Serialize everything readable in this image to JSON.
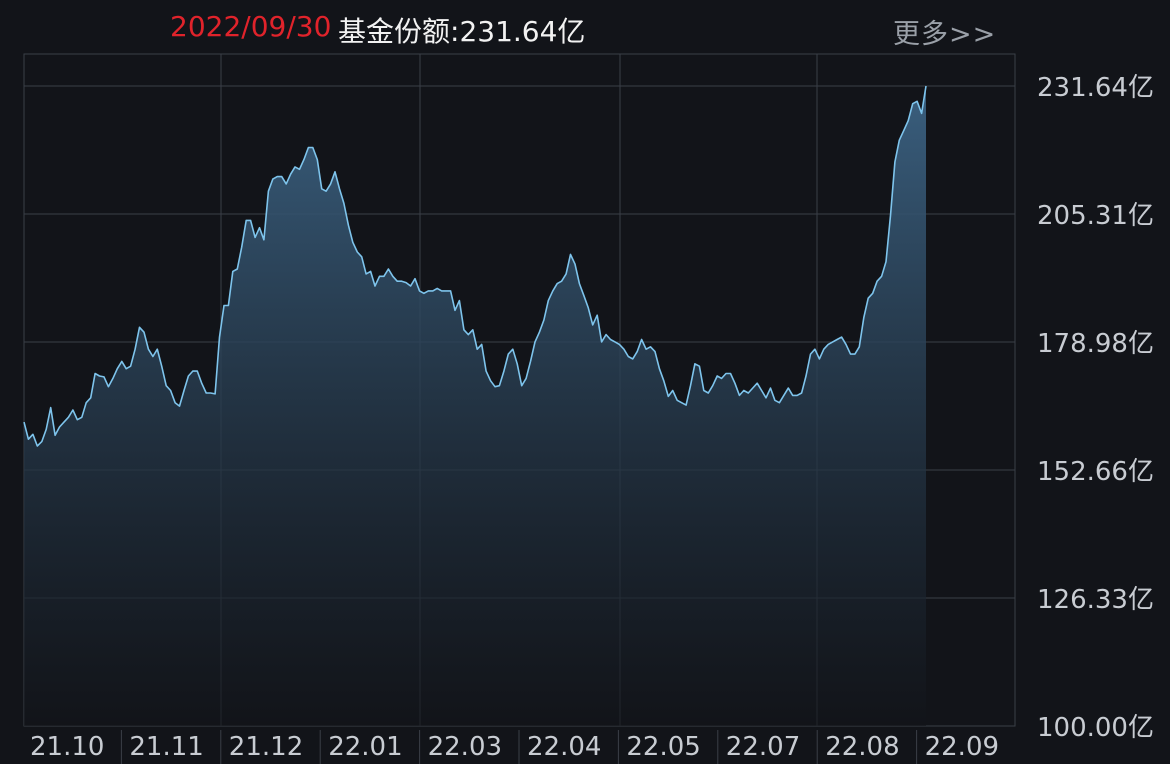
{
  "header": {
    "date": "2022/09/30",
    "label": "基金份额:",
    "value": "231.64亿",
    "more_label": "更多>>"
  },
  "colors": {
    "background": "#121419",
    "grid": "#3a3f47",
    "line": "#7ec4ec",
    "area_top": "#3c6384",
    "date_highlight": "#e0232b",
    "text": "#f2f2f2",
    "axis_text": "#c8ccd2"
  },
  "chart_data": {
    "type": "area",
    "y_unit": "亿",
    "ylim": [
      100.0,
      231.64
    ],
    "y_ticks": [
      "231.64亿",
      "205.31亿",
      "178.98亿",
      "152.66亿",
      "126.33亿",
      "100.00亿"
    ],
    "y_tick_values": [
      231.64,
      205.31,
      178.98,
      152.66,
      126.33,
      100.0
    ],
    "x_ticks": [
      "21.10",
      "21.11",
      "21.12",
      "22.01",
      "22.03",
      "22.04",
      "22.05",
      "22.07",
      "22.08",
      "22.09"
    ],
    "grid": true,
    "series": [
      {
        "values": [
          162.5,
          159.0,
          160.0,
          157.6,
          158.5,
          161.0,
          165.5,
          159.8,
          161.5,
          162.5,
          163.5,
          165.0,
          163.0,
          163.5,
          166.5,
          167.5,
          172.5,
          172.0,
          171.8,
          169.8,
          171.5,
          173.5,
          175.0,
          173.5,
          174.0,
          177.5,
          182.0,
          181.0,
          177.5,
          176.0,
          177.5,
          174.0,
          170.0,
          169.0,
          166.5,
          165.8,
          169.0,
          172.0,
          173.0,
          173.0,
          170.5,
          168.5,
          168.5,
          168.3,
          180.0,
          186.5,
          186.5,
          193.5,
          194.0,
          198.5,
          204.0,
          204.0,
          200.5,
          202.5,
          200.0,
          210.0,
          212.5,
          213.0,
          213.0,
          211.5,
          213.5,
          215.0,
          214.5,
          216.5,
          219.0,
          219.0,
          216.5,
          210.5,
          210.0,
          211.5,
          214.0,
          210.5,
          207.5,
          203.0,
          199.5,
          197.5,
          196.5,
          193.0,
          193.5,
          190.5,
          192.5,
          192.5,
          194.0,
          192.5,
          191.5,
          191.5,
          191.2,
          190.5,
          192.0,
          189.5,
          189.0,
          189.5,
          189.5,
          190.0,
          189.5,
          189.5,
          189.5,
          185.5,
          187.5,
          181.5,
          180.5,
          181.5,
          177.5,
          178.5,
          173.0,
          171.0,
          169.8,
          170.0,
          173.0,
          176.5,
          177.5,
          174.5,
          170.0,
          171.5,
          175.0,
          179.0,
          181.0,
          183.5,
          187.5,
          189.5,
          191.0,
          191.5,
          193.0,
          197.0,
          195.0,
          191.0,
          188.5,
          186.0,
          182.5,
          184.5,
          179.0,
          180.5,
          179.5,
          179.0,
          178.5,
          177.5,
          176.0,
          175.5,
          177.0,
          179.5,
          177.5,
          178.0,
          177.0,
          173.5,
          171.0,
          167.8,
          169.0,
          167.0,
          166.5,
          166.0,
          170.0,
          174.5,
          174.0,
          169.0,
          168.5,
          170.0,
          172.0,
          171.5,
          172.5,
          172.5,
          170.5,
          168.0,
          169.0,
          168.5,
          169.5,
          170.5,
          169.0,
          167.5,
          169.5,
          167.0,
          166.5,
          168.0,
          169.5,
          168.0,
          168.0,
          168.5,
          172.0,
          176.5,
          177.5,
          175.5,
          177.5,
          178.5,
          179.0,
          179.5,
          180.0,
          178.5,
          176.5,
          176.5,
          178.0,
          184.0,
          188.0,
          189.0,
          191.5,
          192.5,
          195.5,
          205.0,
          216.0,
          220.5,
          222.5,
          224.5,
          228.0,
          228.5,
          226.0,
          231.64
        ]
      }
    ]
  }
}
